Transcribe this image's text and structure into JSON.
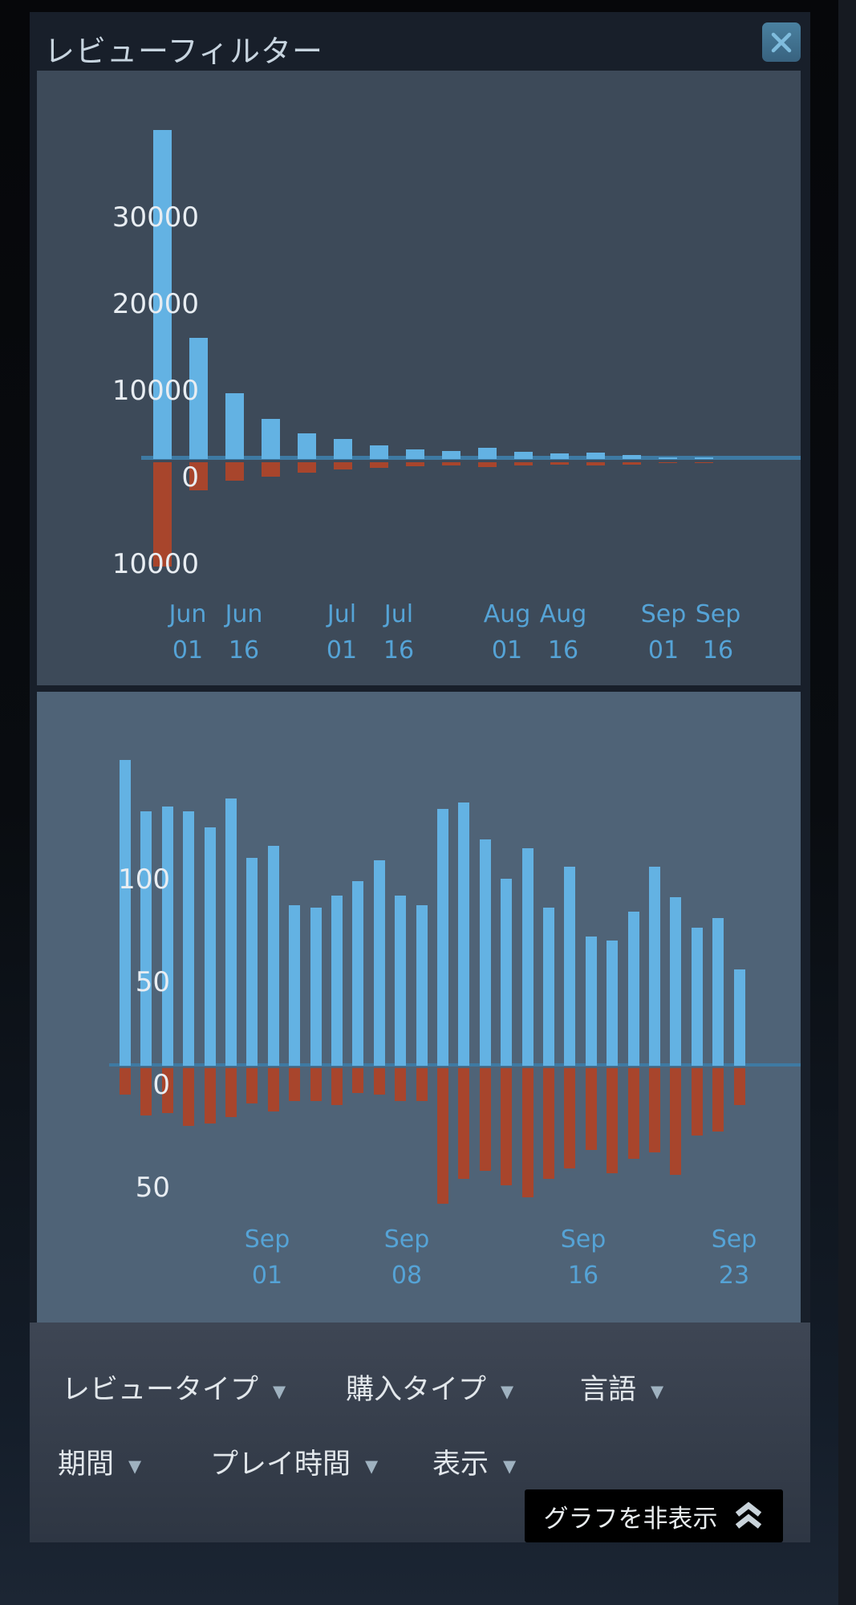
{
  "dialog": {
    "title": "レビューフィルター"
  },
  "icons": {
    "caret": "▼"
  },
  "filters": {
    "row1": [
      {
        "label": "レビュータイプ"
      },
      {
        "label": "購入タイプ"
      },
      {
        "label": "言語"
      }
    ],
    "row2": [
      {
        "label": "期間"
      },
      {
        "label": "プレイ時間"
      },
      {
        "label": "表示"
      }
    ]
  },
  "hide_graph": {
    "label": "グラフを非表示"
  },
  "colors": {
    "positive_bar": "#63b2e3",
    "negative_bar": "#a8452c",
    "zero_line": "#3e7aa3",
    "tick_label": "#55a3d6",
    "panel_overall": "#3d4a59",
    "panel_recent": "#4f6377",
    "dialog_bg": "#181f2a",
    "close_button": "#3e6e8e"
  },
  "chart_data": [
    {
      "id": "overall",
      "type": "bar",
      "title": "",
      "legend": "none",
      "grid": false,
      "ylim": [
        -14000,
        44000
      ],
      "series": [
        {
          "name": "positive",
          "color": "#63b2e3",
          "values": [
            38000,
            14000,
            7600,
            4600,
            3000,
            2300,
            1600,
            1100,
            950,
            1250,
            800,
            650,
            700,
            450,
            200,
            150
          ]
        },
        {
          "name": "negative",
          "color": "#a8452c",
          "values": [
            -12000,
            -3200,
            -2100,
            -1700,
            -1200,
            -800,
            -650,
            -500,
            -400,
            -550,
            -350,
            -300,
            -350,
            -250,
            -100,
            -80
          ]
        }
      ],
      "y_ticks": [
        {
          "label": "30000",
          "value": 30000
        },
        {
          "label": "20000",
          "value": 20000
        },
        {
          "label": "10000",
          "value": 10000
        },
        {
          "label": "0",
          "value": 0
        },
        {
          "label": "10000",
          "value": -10000
        }
      ],
      "x_ticks": [
        {
          "month": "Jun",
          "day": "01",
          "pos": 188
        },
        {
          "month": "Jun",
          "day": "16",
          "pos": 258
        },
        {
          "month": "Jul",
          "day": "01",
          "pos": 380
        },
        {
          "month": "Jul",
          "day": "16",
          "pos": 451
        },
        {
          "month": "Aug",
          "day": "01",
          "pos": 586
        },
        {
          "month": "Aug",
          "day": "16",
          "pos": 656
        },
        {
          "month": "Sep",
          "day": "01",
          "pos": 781
        },
        {
          "month": "Sep",
          "day": "16",
          "pos": 849
        }
      ]
    },
    {
      "id": "recent",
      "type": "bar",
      "title": "",
      "legend": "none",
      "grid": false,
      "ylim": [
        -125,
        182
      ],
      "series": [
        {
          "name": "positive",
          "color": "#63b2e3",
          "values": [
            149,
            124,
            126,
            124,
            116,
            130,
            101,
            107,
            78,
            77,
            83,
            90,
            100,
            83,
            78,
            125,
            128,
            110,
            91,
            106,
            77,
            97,
            63,
            61,
            75,
            97,
            82,
            67,
            72,
            47
          ]
        },
        {
          "name": "negative",
          "color": "#a8452c",
          "values": [
            -13,
            -23,
            -22,
            -28,
            -27,
            -24,
            -17,
            -21,
            -16,
            -16,
            -18,
            -12,
            -13,
            -16,
            -16,
            -66,
            -54,
            -50,
            -57,
            -63,
            -54,
            -49,
            -40,
            -51,
            -44,
            -41,
            -52,
            -33,
            -31,
            -18
          ]
        }
      ],
      "y_ticks": [
        {
          "label": "100",
          "value": 100
        },
        {
          "label": "50",
          "value": 50
        },
        {
          "label": "0",
          "value": 0
        },
        {
          "label": "50",
          "value": -50
        }
      ],
      "x_ticks": [
        {
          "month": "Sep",
          "day": "01",
          "pos": 287
        },
        {
          "month": "Sep",
          "day": "08",
          "pos": 461
        },
        {
          "month": "Sep",
          "day": "16",
          "pos": 681
        },
        {
          "month": "Sep",
          "day": "23",
          "pos": 869
        }
      ]
    }
  ]
}
